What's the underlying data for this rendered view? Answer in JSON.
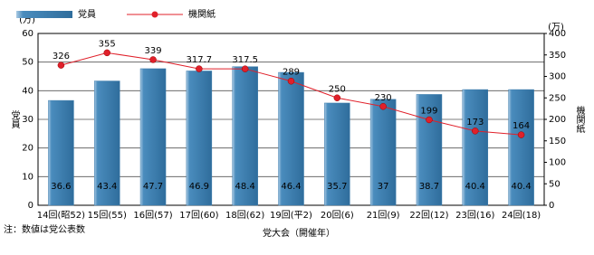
{
  "chart_data": {
    "type": "bar",
    "categories": [
      "14回(昭52)",
      "15回(55)",
      "16回(57)",
      "17回(60)",
      "18回(62)",
      "19回(平2)",
      "20回(6)",
      "21回(9)",
      "22回(12)",
      "23回(16)",
      "24回(18)"
    ],
    "series": [
      {
        "name": "党員",
        "type": "bar",
        "color": "#3b7bab",
        "values": [
          36.6,
          43.4,
          47.7,
          46.9,
          48.4,
          46.4,
          35.7,
          37,
          38.7,
          40.4,
          40.4
        ]
      },
      {
        "name": "機関紙",
        "type": "line",
        "axis": "y2",
        "color": "#e0202a",
        "values": [
          326,
          355,
          339,
          317.7,
          317.5,
          289,
          250,
          230,
          199,
          173,
          164
        ]
      }
    ],
    "ylim": [
      0,
      60
    ],
    "yticks": [
      0,
      10,
      20,
      30,
      40,
      50,
      60
    ],
    "y2lim": [
      0,
      400
    ],
    "y2ticks": [
      0,
      50,
      100,
      150,
      200,
      250,
      300,
      350,
      400
    ],
    "y_unit": "(万)",
    "y2_unit": "(万)",
    "y_label": "党員",
    "y2_label": "機関紙",
    "x_label": "党大会（開催年）",
    "note": "注：数値は党公表数",
    "grid": true
  }
}
